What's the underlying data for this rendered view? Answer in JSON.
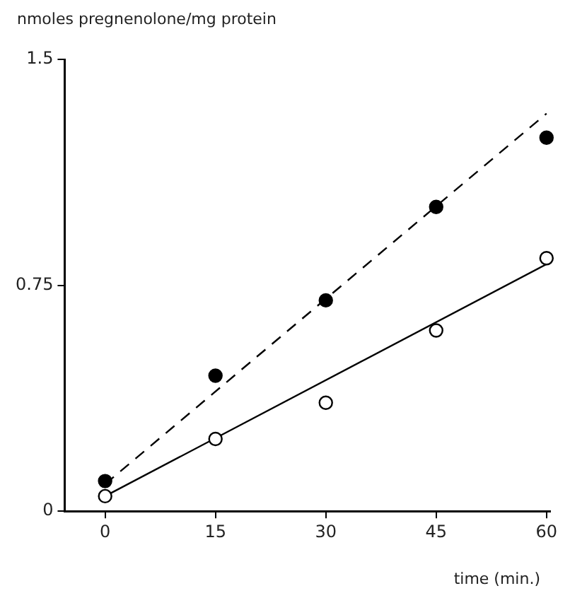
{
  "chart_data": {
    "type": "scatter",
    "xlabel": "time (min.)",
    "ylabel": "nmoles pregnenolone/mg protein",
    "xlim": [
      -5.5,
      60.5
    ],
    "ylim": [
      0,
      1.5
    ],
    "xticks": [
      0,
      15,
      30,
      45,
      60
    ],
    "yticks": [
      0,
      {
        "value": 0.75,
        "label": "0.75"
      },
      1.5
    ],
    "grid": false,
    "legend": false,
    "marker": "circle",
    "series": [
      {
        "color": "#000000",
        "x": [
          0,
          15,
          30,
          45,
          60
        ],
        "values": [
          0.1,
          0.45,
          0.7,
          1.01,
          1.24
        ]
      },
      {
        "color": "#ffffff",
        "x": [
          0,
          15,
          30,
          45,
          60
        ],
        "values": [
          0.05,
          0.24,
          0.36,
          0.6,
          0.84
        ]
      },
      {
        "type": "line",
        "color": "#000000",
        "line_style": "dashed",
        "marker": "none",
        "x": [
          0,
          60
        ],
        "values": [
          0.09,
          1.32
        ]
      },
      {
        "type": "line",
        "color": "#000000",
        "line_style": "solid",
        "marker": "none",
        "x": [
          0,
          60
        ],
        "values": [
          0.05,
          0.82
        ]
      }
    ]
  }
}
